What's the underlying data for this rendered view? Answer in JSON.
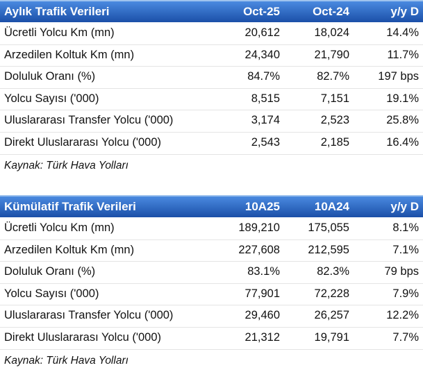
{
  "tables": [
    {
      "header": [
        "Aylık Trafik Verileri",
        "Oct-25",
        "Oct-24",
        "y/y D"
      ],
      "rows": [
        [
          "Ücretli Yolcu Km (mn)",
          "20,612",
          "18,024",
          "14.4%"
        ],
        [
          "Arzedilen Koltuk Km (mn)",
          "24,340",
          "21,790",
          "11.7%"
        ],
        [
          "Doluluk Oranı (%)",
          "84.7%",
          "82.7%",
          "197 bps"
        ],
        [
          "Yolcu Sayısı ('000)",
          "8,515",
          "7,151",
          "19.1%"
        ],
        [
          "Uluslararası Transfer Yolcu ('000)",
          "3,174",
          "2,523",
          "25.8%"
        ],
        [
          "Direkt Uluslararası Yolcu ('000)",
          "2,543",
          "2,185",
          "16.4%"
        ]
      ],
      "source": "Kaynak: Türk Hava Yolları"
    },
    {
      "header": [
        "Kümülatif Trafik Verileri",
        "10A25",
        "10A24",
        "y/y D"
      ],
      "rows": [
        [
          "Ücretli Yolcu Km (mn)",
          "189,210",
          "175,055",
          "8.1%"
        ],
        [
          "Arzedilen Koltuk Km (mn)",
          "227,608",
          "212,595",
          "7.1%"
        ],
        [
          "Doluluk Oranı (%)",
          "83.1%",
          "82.3%",
          "79 bps"
        ],
        [
          "Yolcu Sayısı ('000)",
          "77,901",
          "72,228",
          "7.9%"
        ],
        [
          "Uluslararası Transfer Yolcu ('000)",
          "29,460",
          "26,257",
          "12.2%"
        ],
        [
          "Direkt Uluslararası Yolcu ('000)",
          "21,312",
          "19,791",
          "7.7%"
        ]
      ],
      "source": "Kaynak: Türk Hava Yolları"
    }
  ]
}
